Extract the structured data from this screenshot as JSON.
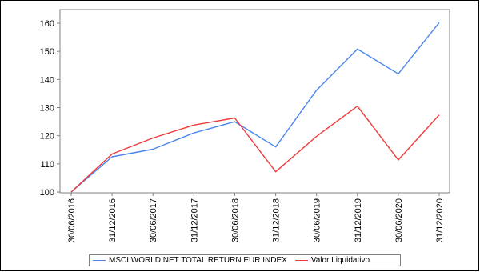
{
  "chart_data": {
    "type": "line",
    "title": "",
    "xlabel": "",
    "ylabel": "",
    "categories": [
      "30/06/2016",
      "31/12/2016",
      "30/06/2017",
      "31/12/2017",
      "30/06/2018",
      "31/12/2018",
      "30/06/2019",
      "31/12/2019",
      "30/06/2020",
      "31/12/2020"
    ],
    "ylim": [
      100,
      160
    ],
    "yticks": [
      100,
      110,
      120,
      130,
      140,
      150,
      160
    ],
    "grid": false,
    "legend_position": "bottom",
    "series": [
      {
        "name": "MSCI WORLD NET TOTAL RETURN EUR INDEX",
        "color": "#4a86f0",
        "values": [
          100,
          112.5,
          115.2,
          121,
          125,
          116,
          136.2,
          150.8,
          142,
          160.2
        ]
      },
      {
        "name": "Valor Liquidativo",
        "color": "#f03a3a",
        "values": [
          100,
          113.5,
          119.2,
          123.8,
          126.3,
          107.2,
          119.8,
          130.5,
          111.4,
          127.4
        ]
      }
    ]
  }
}
